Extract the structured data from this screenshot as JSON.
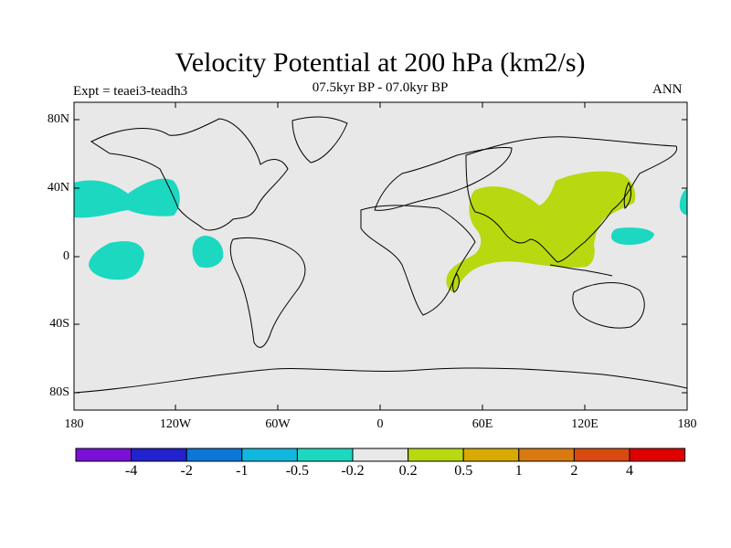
{
  "title": "Velocity Potential at 200 hPa (km2/s)",
  "subtitle": "07.5kyr BP - 07.0kyr BP",
  "experiment": "Expt = teaei3-teadh3",
  "season": "ANN",
  "lat_labels": [
    "80N",
    "40N",
    "0",
    "40S",
    "80S"
  ],
  "lon_labels": [
    "180",
    "120W",
    "60W",
    "0",
    "60E",
    "120E",
    "180"
  ],
  "colorbar": {
    "labels": [
      "-4",
      "-2",
      "-1",
      "-0.5",
      "-0.2",
      "0.2",
      "0.5",
      "1",
      "2",
      "4"
    ],
    "colors": [
      "#7a10d8",
      "#2222d0",
      "#0a78d8",
      "#10b8e0",
      "#1cd8c0",
      "#e8e8e8",
      "#b8d810",
      "#d8aa00",
      "#d87a10",
      "#d84a10",
      "#e00000"
    ]
  },
  "colors": {
    "ocean_background": "#e8e8e8",
    "negative_anomaly": "#1cd8c0",
    "positive_anomaly": "#b8d810",
    "coastline": "#000000"
  }
}
